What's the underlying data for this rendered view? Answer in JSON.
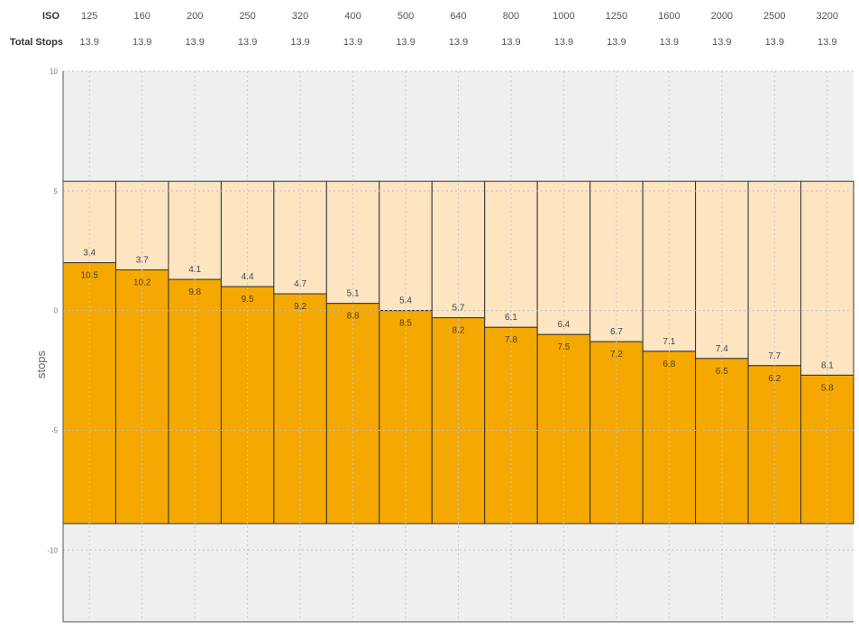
{
  "header": {
    "iso_label": "ISO",
    "total_label": "Total Stops"
  },
  "chart_data": {
    "type": "bar",
    "title": "",
    "xlabel": "",
    "ylabel": "stops",
    "ylim": [
      -13,
      10
    ],
    "yticks": [
      "10",
      "5",
      "0",
      "-5",
      "-10"
    ],
    "grid": true,
    "categories": [
      "125",
      "160",
      "200",
      "250",
      "320",
      "400",
      "500",
      "640",
      "800",
      "1000",
      "1250",
      "1600",
      "2000",
      "2500",
      "3200"
    ],
    "total_stops": [
      "13.9",
      "13.9",
      "13.9",
      "13.9",
      "13.9",
      "13.9",
      "13.9",
      "13.9",
      "13.9",
      "13.9",
      "13.9",
      "13.9",
      "13.9",
      "13.9",
      "13.9"
    ],
    "range_top": 5.4,
    "range_bottom": -8.9,
    "series": [
      {
        "values": [
          3.4,
          3.7,
          4.1,
          4.4,
          4.7,
          5.1,
          5.4,
          5.7,
          6.1,
          6.4,
          6.7,
          7.1,
          7.4,
          7.7,
          8.1
        ],
        "color": "#fde5c1"
      },
      {
        "values": [
          10.5,
          10.2,
          9.8,
          9.5,
          9.2,
          8.8,
          8.5,
          8.2,
          7.8,
          7.5,
          7.2,
          6.8,
          6.5,
          6.2,
          5.8
        ],
        "color": "#f5a800"
      }
    ],
    "value_labels_top": [
      "3.4",
      "3.7",
      "4.1",
      "4.4",
      "4.7",
      "5.1",
      "5.4",
      "5.7",
      "6.1",
      "6.4",
      "6.7",
      "7.1",
      "7.4",
      "7.7",
      "8.1"
    ],
    "value_labels_bottom": [
      "10.5",
      "10.2",
      "9.8",
      "9.5",
      "9.2",
      "8.8",
      "8.5",
      "8.2",
      "7.8",
      "7.5",
      "7.2",
      "6.8",
      "6.5",
      "6.2",
      "5.8"
    ],
    "colors": {
      "plot_bg": "#efefef",
      "upper": "#fde5c1",
      "lower": "#f5a800",
      "edge": "#333333"
    }
  }
}
